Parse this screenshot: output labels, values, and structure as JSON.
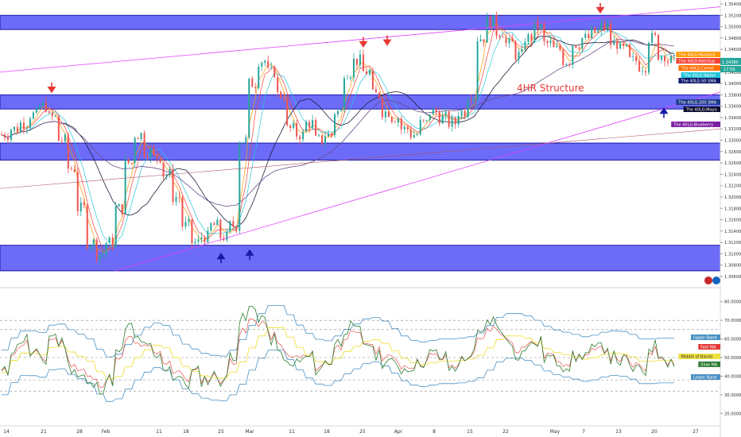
{
  "chart_data": [
    {
      "type": "line",
      "title": "",
      "annotation": "4HR Structure",
      "ylim": [
        1.306,
        1.354
      ],
      "y_ticks": [
        "1.35400",
        "1.35200",
        "1.35000",
        "1.34800",
        "1.34600",
        "1.34400",
        "1.34200",
        "1.34000",
        "1.33800",
        "1.33600",
        "1.33400",
        "1.33200",
        "1.33000",
        "1.32800",
        "1.32600",
        "1.32400",
        "1.32200",
        "1.32000",
        "1.31800",
        "1.31600",
        "1.31400",
        "1.31200",
        "1.31000",
        "1.30800",
        "1.30600"
      ],
      "x_ticks": [
        "14",
        "21",
        "28",
        "Feb",
        "11",
        "18",
        "25",
        "Mar",
        "11",
        "18",
        "25",
        "Apr",
        "8",
        "15",
        "22",
        "May",
        "7",
        "13",
        "20",
        "27"
      ],
      "price_tag": {
        "value": "1.34380",
        "time": "17:59"
      },
      "zones": [
        {
          "from": 1.3495,
          "to": 1.352
        },
        {
          "from": 1.3355,
          "to": 1.338
        },
        {
          "from": 1.3265,
          "to": 1.3295
        },
        {
          "from": 1.307,
          "to": 1.3115
        }
      ],
      "close_series": [
        1.331,
        1.332,
        1.333,
        1.3345,
        1.336,
        1.334,
        1.33,
        1.325,
        1.318,
        1.312,
        1.31,
        1.312,
        1.318,
        1.326,
        1.331,
        1.328,
        1.327,
        1.324,
        1.32,
        1.315,
        1.312,
        1.313,
        1.315,
        1.313,
        1.315,
        1.33,
        1.34,
        1.344,
        1.342,
        1.338,
        1.332,
        1.331,
        1.333,
        1.33,
        1.331,
        1.335,
        1.342,
        1.344,
        1.342,
        1.338,
        1.335,
        1.334,
        1.332,
        1.331,
        1.333,
        1.335,
        1.334,
        1.333,
        1.335,
        1.338,
        1.348,
        1.351,
        1.349,
        1.347,
        1.345,
        1.348,
        1.35,
        1.347,
        1.346,
        1.344,
        1.347,
        1.348,
        1.349,
        1.35,
        1.347,
        1.346,
        1.344,
        1.343,
        1.348,
        1.345,
        1.344
      ],
      "legend": [
        "The 40LG:Mustard",
        "The 40LG:Ketchup",
        "The 40LG:Carrot",
        "The 40LG:Water",
        "The 40LG:50 SMA",
        "The 40LG:200 SMA",
        "The 40LG:Mayo",
        "The 40LG:Blueberry"
      ],
      "legend_colors": [
        "#ff9800",
        "#f44336",
        "#ff6f00",
        "#26c6da",
        "#0d1b6b",
        "#1e3a8a",
        "#0b0b2e",
        "#7b1fa2"
      ]
    },
    {
      "type": "line",
      "title": "",
      "ylim": [
        15,
        85
      ],
      "y_ticks": [
        "80.00000",
        "70.00000",
        "60.00000",
        "50.00000",
        "40.00000",
        "30.00000",
        "20.00000"
      ],
      "dashed_levels": [
        70,
        65,
        50,
        38,
        32
      ],
      "series": [
        {
          "name": "Upper Band",
          "color": "#4a90c2"
        },
        {
          "name": "Fast MA",
          "color": "#e53935"
        },
        {
          "name": "Middle of Bands",
          "color": "#f0e040"
        },
        {
          "name": "Slow MA",
          "color": "#2e7d32"
        },
        {
          "name": "Lower Band",
          "color": "#4a90c2"
        }
      ],
      "rsi_series": [
        42,
        55,
        60,
        52,
        48,
        62,
        58,
        45,
        40,
        35,
        34,
        38,
        52,
        66,
        60,
        55,
        50,
        45,
        40,
        36,
        42,
        38,
        40,
        38,
        52,
        70,
        76,
        72,
        60,
        52,
        45,
        48,
        50,
        44,
        48,
        58,
        66,
        64,
        58,
        52,
        48,
        46,
        44,
        46,
        48,
        52,
        50,
        44,
        48,
        52,
        62,
        70,
        66,
        58,
        52,
        56,
        58,
        50,
        48,
        46,
        50,
        52,
        54,
        56,
        50,
        48,
        44,
        42,
        56,
        52,
        48
      ]
    }
  ],
  "colors": {
    "zone": "#3b3bf5",
    "trendline": "#e040fb",
    "arrow_down": "#e53935",
    "arrow_up": "#1a1aa8"
  }
}
